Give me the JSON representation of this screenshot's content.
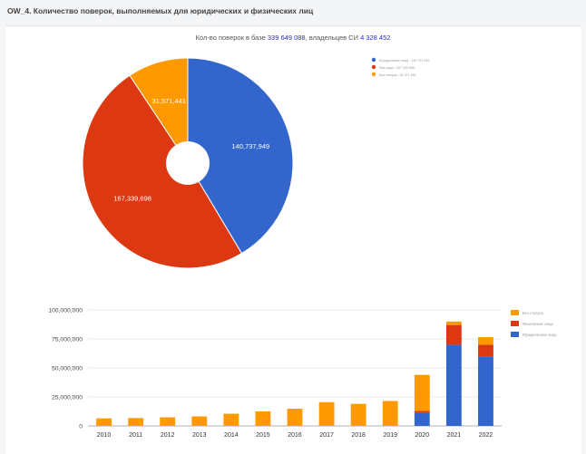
{
  "page": {
    "title": "OW_4. Количество поверок, выполняемых для юридических и физических лиц"
  },
  "summary": {
    "prefix": "Кол-во поверок в базе",
    "total": "339 649 088",
    "middle": ", владельцев СИ",
    "owners": "4 328 452"
  },
  "colors": {
    "blue": "#3366cc",
    "red": "#dc3912",
    "orange": "#ff9900"
  },
  "chart_data": [
    {
      "type": "pie",
      "donut": true,
      "slices": [
        {
          "name": "Юридические лица",
          "value": 140737949,
          "label": "140,737,949",
          "color": "#3366cc"
        },
        {
          "name": "Физ.лица",
          "value": 167339698,
          "label": "167,339,698",
          "color": "#dc3912"
        },
        {
          "name": "Без статуса",
          "value": 31571441,
          "label": "31,571,441",
          "color": "#ff9900"
        }
      ],
      "legend": {
        "position": "right",
        "entries": [
          "Юридические лица - 140 737 949",
          "Физ.лица - 167 339 698",
          "Без статуса - 31 571 441"
        ]
      }
    },
    {
      "type": "bar",
      "stacked": true,
      "categories": [
        "2010",
        "2011",
        "2012",
        "2013",
        "2014",
        "2015",
        "2016",
        "2017",
        "2018",
        "2019",
        "2020",
        "2021",
        "2022"
      ],
      "series": [
        {
          "name": "Юридические лица",
          "color": "#3366cc",
          "values": [
            0,
            0,
            0,
            0,
            0,
            0,
            0,
            0,
            0,
            0,
            11000000,
            70000000,
            60000000
          ]
        },
        {
          "name": "Физические лица",
          "color": "#dc3912",
          "values": [
            0,
            0,
            0,
            0,
            0,
            0,
            0,
            0,
            0,
            0,
            2000000,
            17000000,
            10000000
          ]
        },
        {
          "name": "Без статуса",
          "color": "#ff9900",
          "values": [
            6500000,
            6800000,
            7400000,
            8200000,
            10500000,
            12500000,
            14800000,
            20500000,
            19000000,
            21500000,
            31000000,
            3000000,
            6500000
          ]
        }
      ],
      "ylim": [
        0,
        100000000
      ],
      "yticks": [
        "0",
        "25,000,000",
        "50,000,000",
        "75,000,000",
        "100,000,000"
      ],
      "grid": true,
      "legend": {
        "position": "right",
        "entries": [
          "Без статуса",
          "Физические лица",
          "Юридические лица"
        ]
      }
    }
  ]
}
